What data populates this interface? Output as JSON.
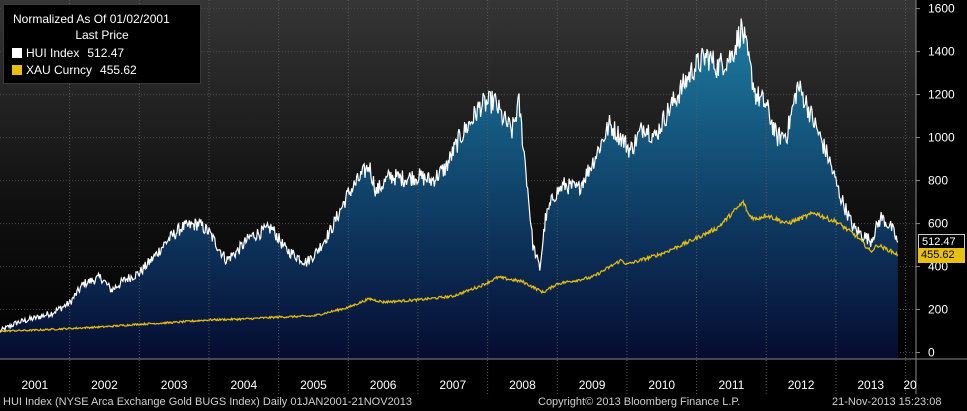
{
  "legend": {
    "title": "Normalized As Of 01/02/2001",
    "subtitle": "Last Price",
    "entries": [
      {
        "label": "HUI Index",
        "value": "512.47",
        "color": "#ffffff"
      },
      {
        "label": "XAU Curncy",
        "value": "455.62",
        "color": "#e8c010"
      }
    ]
  },
  "footer": {
    "left": "HUI Index (NYSE Arca Exchange Gold BUGS Index)  Daily 01JAN2001-21NOV2013",
    "center": "Copyright© 2013 Bloomberg Finance L.P.",
    "right": "21-Nov-2013 15:23:08"
  },
  "chart_data": {
    "type": "line",
    "title": "Normalized As Of 01/02/2001",
    "subtitle": "Last Price",
    "x_range": [
      "2001-01-01",
      "2013-11-21"
    ],
    "ylim": [
      -30,
      1640
    ],
    "y_ticks": [
      "0",
      "200",
      "400",
      "600",
      "800",
      "1000",
      "1200",
      "1400",
      "1600"
    ],
    "x_ticks": [
      "2001",
      "2002",
      "2003",
      "2004",
      "2005",
      "2006",
      "2007",
      "2008",
      "2009",
      "2010",
      "2011",
      "2012",
      "2013",
      "20"
    ],
    "grid": true,
    "legend_position": "top-left",
    "series": [
      {
        "name": "HUI Index",
        "color": "#ffffff",
        "last_value_label": "512.47",
        "x": [
          2001.0,
          2001.25,
          2001.5,
          2001.75,
          2002.0,
          2002.2,
          2002.45,
          2002.6,
          2002.8,
          2003.0,
          2003.2,
          2003.4,
          2003.6,
          2003.85,
          2004.0,
          2004.25,
          2004.4,
          2004.6,
          2004.9,
          2005.1,
          2005.4,
          2005.55,
          2005.75,
          2006.0,
          2006.3,
          2006.4,
          2006.6,
          2006.8,
          2007.0,
          2007.2,
          2007.4,
          2007.6,
          2007.75,
          2007.9,
          2008.1,
          2008.2,
          2008.35,
          2008.45,
          2008.55,
          2008.65,
          2008.75,
          2008.83,
          2008.95,
          2009.1,
          2009.3,
          2009.5,
          2009.75,
          2009.92,
          2010.05,
          2010.25,
          2010.4,
          2010.55,
          2010.75,
          2010.95,
          2011.15,
          2011.3,
          2011.5,
          2011.65,
          2011.75,
          2011.85,
          2012.0,
          2012.15,
          2012.3,
          2012.45,
          2012.55,
          2012.75,
          2012.9,
          2013.05,
          2013.25,
          2013.5,
          2013.65,
          2013.8,
          2013.89
        ],
        "y": [
          100,
          140,
          160,
          185,
          230,
          320,
          350,
          290,
          340,
          370,
          440,
          520,
          580,
          600,
          560,
          430,
          470,
          540,
          580,
          480,
          420,
          470,
          570,
          740,
          870,
          750,
          820,
          810,
          820,
          800,
          860,
          1000,
          1070,
          1150,
          1170,
          1100,
          1030,
          1160,
          850,
          500,
          390,
          620,
          730,
          780,
          760,
          880,
          1060,
          1000,
          940,
          1060,
          1000,
          1100,
          1210,
          1320,
          1380,
          1330,
          1380,
          1510,
          1350,
          1200,
          1150,
          1000,
          1020,
          1240,
          1180,
          1020,
          900,
          740,
          580,
          520,
          630,
          580,
          512.47
        ]
      },
      {
        "name": "XAU Curncy",
        "color": "#e8c010",
        "last_value_label": "455.62",
        "x": [
          2001.0,
          2001.5,
          2002.0,
          2002.5,
          2003.0,
          2003.5,
          2004.0,
          2004.5,
          2005.0,
          2005.5,
          2006.0,
          2006.3,
          2006.5,
          2007.0,
          2007.5,
          2007.9,
          2008.15,
          2008.5,
          2008.8,
          2009.0,
          2009.5,
          2009.92,
          2010.0,
          2010.5,
          2010.92,
          2011.3,
          2011.67,
          2011.75,
          2011.85,
          2012.0,
          2012.3,
          2012.7,
          2012.9,
          2013.0,
          2013.3,
          2013.5,
          2013.6,
          2013.8,
          2013.89
        ],
        "y": [
          100,
          104,
          112,
          120,
          132,
          140,
          152,
          156,
          165,
          170,
          210,
          250,
          235,
          245,
          262,
          310,
          350,
          330,
          280,
          320,
          350,
          430,
          410,
          460,
          520,
          580,
          700,
          640,
          620,
          640,
          600,
          650,
          620,
          610,
          540,
          470,
          500,
          470,
          455.62
        ]
      }
    ]
  }
}
